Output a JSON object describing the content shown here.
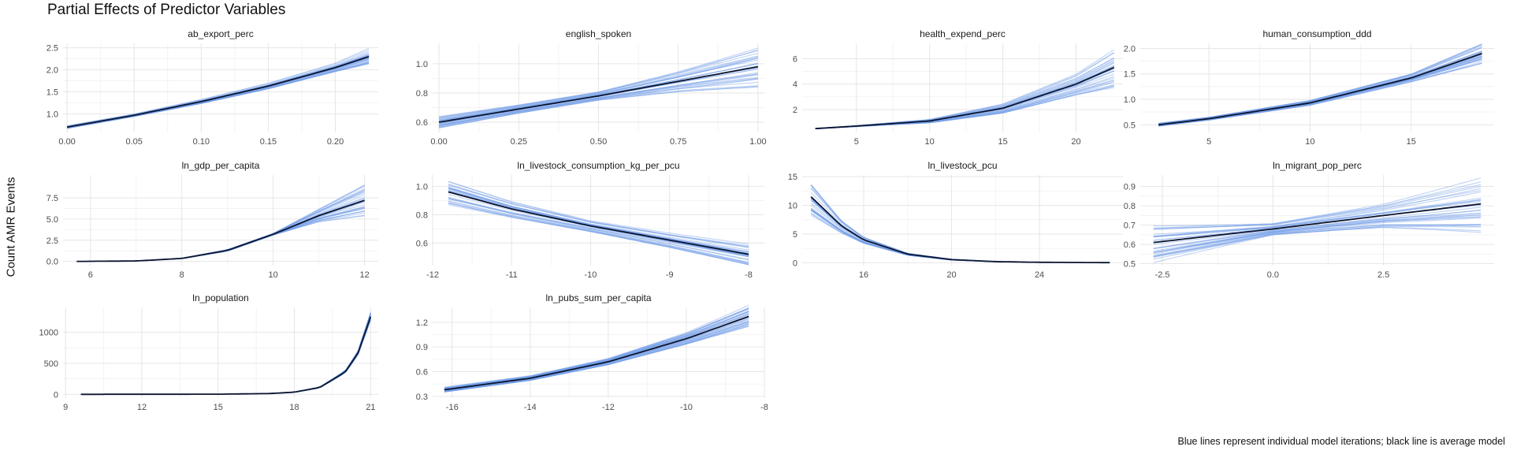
{
  "title": "Partial Effects of Predictor Variables",
  "ylabel": "Count AMR Events",
  "caption": "Blue lines represent individual model iterations; black line is average model",
  "colors": {
    "individual": "#6f9be6",
    "average": "#0b1530",
    "grid_major": "#e6e6e6",
    "grid_minor": "#f3f3f3"
  },
  "chart_data": {
    "type": "line",
    "iterations": 30,
    "panels": [
      {
        "name": "ab_export_perc",
        "xlim": [
          -0.003,
          0.232
        ],
        "ylim": [
          0.58,
          2.6
        ],
        "xticks": [
          0.0,
          0.05,
          0.1,
          0.15,
          0.2
        ],
        "xtick_labels": [
          "0.00",
          "0.05",
          "0.10",
          "0.15",
          "0.20"
        ],
        "yticks": [
          1.0,
          1.5,
          2.0,
          2.5
        ],
        "ytick_labels": [
          "1.0",
          "1.5",
          "2.0",
          "2.5"
        ],
        "x": [
          0.0,
          0.05,
          0.1,
          0.15,
          0.2,
          0.225
        ],
        "y": [
          0.7,
          0.97,
          1.28,
          1.63,
          2.05,
          2.3
        ],
        "spread": [
          0.03,
          0.03,
          0.05,
          0.07,
          0.1,
          0.18
        ]
      },
      {
        "name": "english_spoken",
        "xlim": [
          -0.02,
          1.02
        ],
        "ylim": [
          0.53,
          1.14
        ],
        "xticks": [
          0.0,
          0.25,
          0.5,
          0.75,
          1.0
        ],
        "xtick_labels": [
          "0.00",
          "0.25",
          "0.50",
          "0.75",
          "1.00"
        ],
        "yticks": [
          0.6,
          0.8,
          1.0
        ],
        "ytick_labels": [
          "0.6",
          "0.8",
          "1.0"
        ],
        "x": [
          0.0,
          0.25,
          0.5,
          0.75,
          1.0
        ],
        "y": [
          0.6,
          0.69,
          0.78,
          0.88,
          0.98
        ],
        "spread": [
          0.04,
          0.03,
          0.03,
          0.07,
          0.13
        ]
      },
      {
        "name": "health_expend_perc",
        "xlim": [
          1.3,
          23.2
        ],
        "ylim": [
          0.2,
          7.2
        ],
        "xticks": [
          5,
          10,
          15,
          20
        ],
        "xtick_labels": [
          "5",
          "10",
          "15",
          "20"
        ],
        "yticks": [
          2,
          4,
          6
        ],
        "ytick_labels": [
          "2",
          "4",
          "6"
        ],
        "x": [
          2.2,
          5,
          10,
          15,
          20,
          22.6
        ],
        "y": [
          0.5,
          0.7,
          1.1,
          2.1,
          4.0,
          5.3
        ],
        "spread": [
          0.02,
          0.04,
          0.15,
          0.4,
          0.9,
          1.6
        ]
      },
      {
        "name": "human_consumption_ddd",
        "xlim": [
          1.6,
          19.1
        ],
        "ylim": [
          0.35,
          2.1
        ],
        "xticks": [
          5,
          10,
          15
        ],
        "xtick_labels": [
          "5",
          "10",
          "15"
        ],
        "yticks": [
          0.5,
          1.0,
          1.5,
          2.0
        ],
        "ytick_labels": [
          "0.5",
          "1.0",
          "1.5",
          "2.0"
        ],
        "x": [
          2.5,
          5,
          10,
          15,
          18.5
        ],
        "y": [
          0.5,
          0.62,
          0.93,
          1.42,
          1.9
        ],
        "spread": [
          0.03,
          0.03,
          0.05,
          0.08,
          0.2
        ]
      },
      {
        "name": "ln_gdp_per_capita",
        "xlim": [
          5.4,
          12.3
        ],
        "ylim": [
          -0.5,
          10.2
        ],
        "xticks": [
          6,
          8,
          10,
          12
        ],
        "xtick_labels": [
          "6",
          "8",
          "10",
          "12"
        ],
        "yticks": [
          0.0,
          2.5,
          5.0,
          7.5
        ],
        "ytick_labels": [
          "0.0",
          "2.5",
          "5.0",
          "7.5"
        ],
        "x": [
          5.7,
          7,
          8,
          9,
          10,
          11,
          12
        ],
        "y": [
          0.0,
          0.05,
          0.35,
          1.3,
          3.2,
          5.4,
          7.2
        ],
        "spread": [
          0.0,
          0.0,
          0.03,
          0.1,
          0.1,
          0.8,
          1.9
        ]
      },
      {
        "name": "ln_livestock_consumption_kg_per_pcu",
        "xlim": [
          -12.0,
          -7.8
        ],
        "ylim": [
          0.44,
          1.08
        ],
        "xticks": [
          -12,
          -11,
          -10,
          -9,
          -8
        ],
        "xtick_labels": [
          "-12",
          "-11",
          "-10",
          "-9",
          "-8"
        ],
        "yticks": [
          0.6,
          0.8,
          1.0
        ],
        "ytick_labels": [
          "0.6",
          "0.8",
          "1.0"
        ],
        "x": [
          -11.8,
          -11,
          -10,
          -9,
          -8
        ],
        "y": [
          0.96,
          0.84,
          0.72,
          0.62,
          0.52
        ],
        "spread": [
          0.09,
          0.06,
          0.04,
          0.05,
          0.07
        ]
      },
      {
        "name": "ln_livestock_pcu",
        "xlim": [
          13.2,
          27.8
        ],
        "ylim": [
          -0.5,
          15.3
        ],
        "xticks": [
          16,
          20,
          24
        ],
        "xtick_labels": [
          "16",
          "20",
          "24"
        ],
        "yticks": [
          0,
          5,
          10,
          15
        ],
        "ytick_labels": [
          "0",
          "5",
          "10",
          "15"
        ],
        "x": [
          13.6,
          15,
          16,
          18,
          20,
          22,
          24,
          27.2
        ],
        "y": [
          11.5,
          6.4,
          4.0,
          1.5,
          0.55,
          0.2,
          0.08,
          0.02
        ],
        "spread": [
          3.0,
          1.2,
          0.6,
          0.2,
          0.08,
          0.03,
          0.01,
          0.0
        ]
      },
      {
        "name": "ln_migrant_pop_perc",
        "xlim": [
          -3.0,
          5.0
        ],
        "ylim": [
          0.49,
          0.96
        ],
        "xticks": [
          -2.5,
          0.0,
          2.5
        ],
        "xtick_labels": [
          "-2.5",
          "0.0",
          "2.5"
        ],
        "yticks": [
          0.5,
          0.6,
          0.7,
          0.8,
          0.9
        ],
        "ytick_labels": [
          "0.5",
          "0.6",
          "0.7",
          "0.8",
          "0.9"
        ],
        "x": [
          -2.7,
          0.0,
          2.5,
          4.7
        ],
        "y": [
          0.61,
          0.68,
          0.75,
          0.81
        ],
        "spread": [
          0.09,
          0.03,
          0.06,
          0.13
        ]
      },
      {
        "name": "ln_population",
        "xlim": [
          8.9,
          21.3
        ],
        "ylim": [
          -60,
          1400
        ],
        "xticks": [
          9,
          12,
          15,
          18,
          21
        ],
        "xtick_labels": [
          "9",
          "12",
          "15",
          "18",
          "21"
        ],
        "yticks": [
          0,
          500,
          1000
        ],
        "ytick_labels": [
          "0",
          "500",
          "1000"
        ],
        "x": [
          9.6,
          15,
          17,
          18,
          19,
          20,
          20.5,
          21
        ],
        "y": [
          0,
          2,
          12,
          35,
          110,
          360,
          660,
          1250
        ],
        "spread": [
          0,
          0,
          1,
          3,
          8,
          20,
          35,
          70
        ]
      },
      {
        "name": "ln_pubs_sum_per_capita",
        "xlim": [
          -16.5,
          -8.0
        ],
        "ylim": [
          0.28,
          1.38
        ],
        "xticks": [
          -16,
          -14,
          -12,
          -10,
          -8
        ],
        "xtick_labels": [
          "-16",
          "-14",
          "-12",
          "-10",
          "-8"
        ],
        "yticks": [
          0.3,
          0.6,
          0.9,
          1.2
        ],
        "ytick_labels": [
          "0.3",
          "0.6",
          "0.9",
          "1.2"
        ],
        "x": [
          -16.2,
          -14,
          -12,
          -10,
          -8.4
        ],
        "y": [
          0.38,
          0.52,
          0.72,
          1.0,
          1.27
        ],
        "spread": [
          0.03,
          0.03,
          0.04,
          0.07,
          0.12
        ]
      }
    ]
  }
}
